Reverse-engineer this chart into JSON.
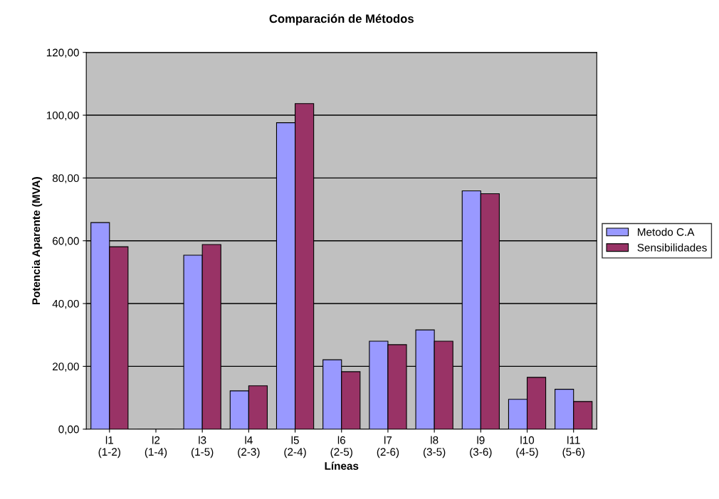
{
  "chart_data": {
    "type": "bar",
    "title": "Comparación de Métodos",
    "xlabel": "Líneas",
    "ylabel": "Potencia Aparente (MVA)",
    "categories": [
      "l1\n(1-2)",
      "l2\n(1-4)",
      "l3\n(1-5)",
      "l4\n(2-3)",
      "l5\n(2-4)",
      "l6\n(2-5)",
      "l7\n(2-6)",
      "l8\n(3-5)",
      "l9\n(3-6)",
      "l10\n(4-5)",
      "l11\n(5-6)"
    ],
    "series": [
      {
        "name": "Metodo C.A",
        "color": "#9999ff",
        "values": [
          65.8,
          0,
          55.4,
          12.2,
          97.6,
          22.1,
          28.0,
          31.6,
          75.9,
          9.5,
          12.7
        ]
      },
      {
        "name": "Sensibilidades",
        "color": "#993366",
        "values": [
          58.1,
          0,
          58.8,
          13.8,
          103.7,
          18.3,
          26.9,
          28.0,
          75.0,
          16.5,
          8.8
        ]
      }
    ],
    "ylim": [
      0,
      120
    ],
    "yticks": [
      {
        "value": 0,
        "label": "0,00"
      },
      {
        "value": 20,
        "label": "20,00"
      },
      {
        "value": 40,
        "label": "40,00"
      },
      {
        "value": 60,
        "label": "60,00"
      },
      {
        "value": 80,
        "label": "80,00"
      },
      {
        "value": 100,
        "label": "100,00"
      },
      {
        "value": 120,
        "label": "120,00"
      }
    ],
    "grid": "y",
    "legend": "right"
  }
}
